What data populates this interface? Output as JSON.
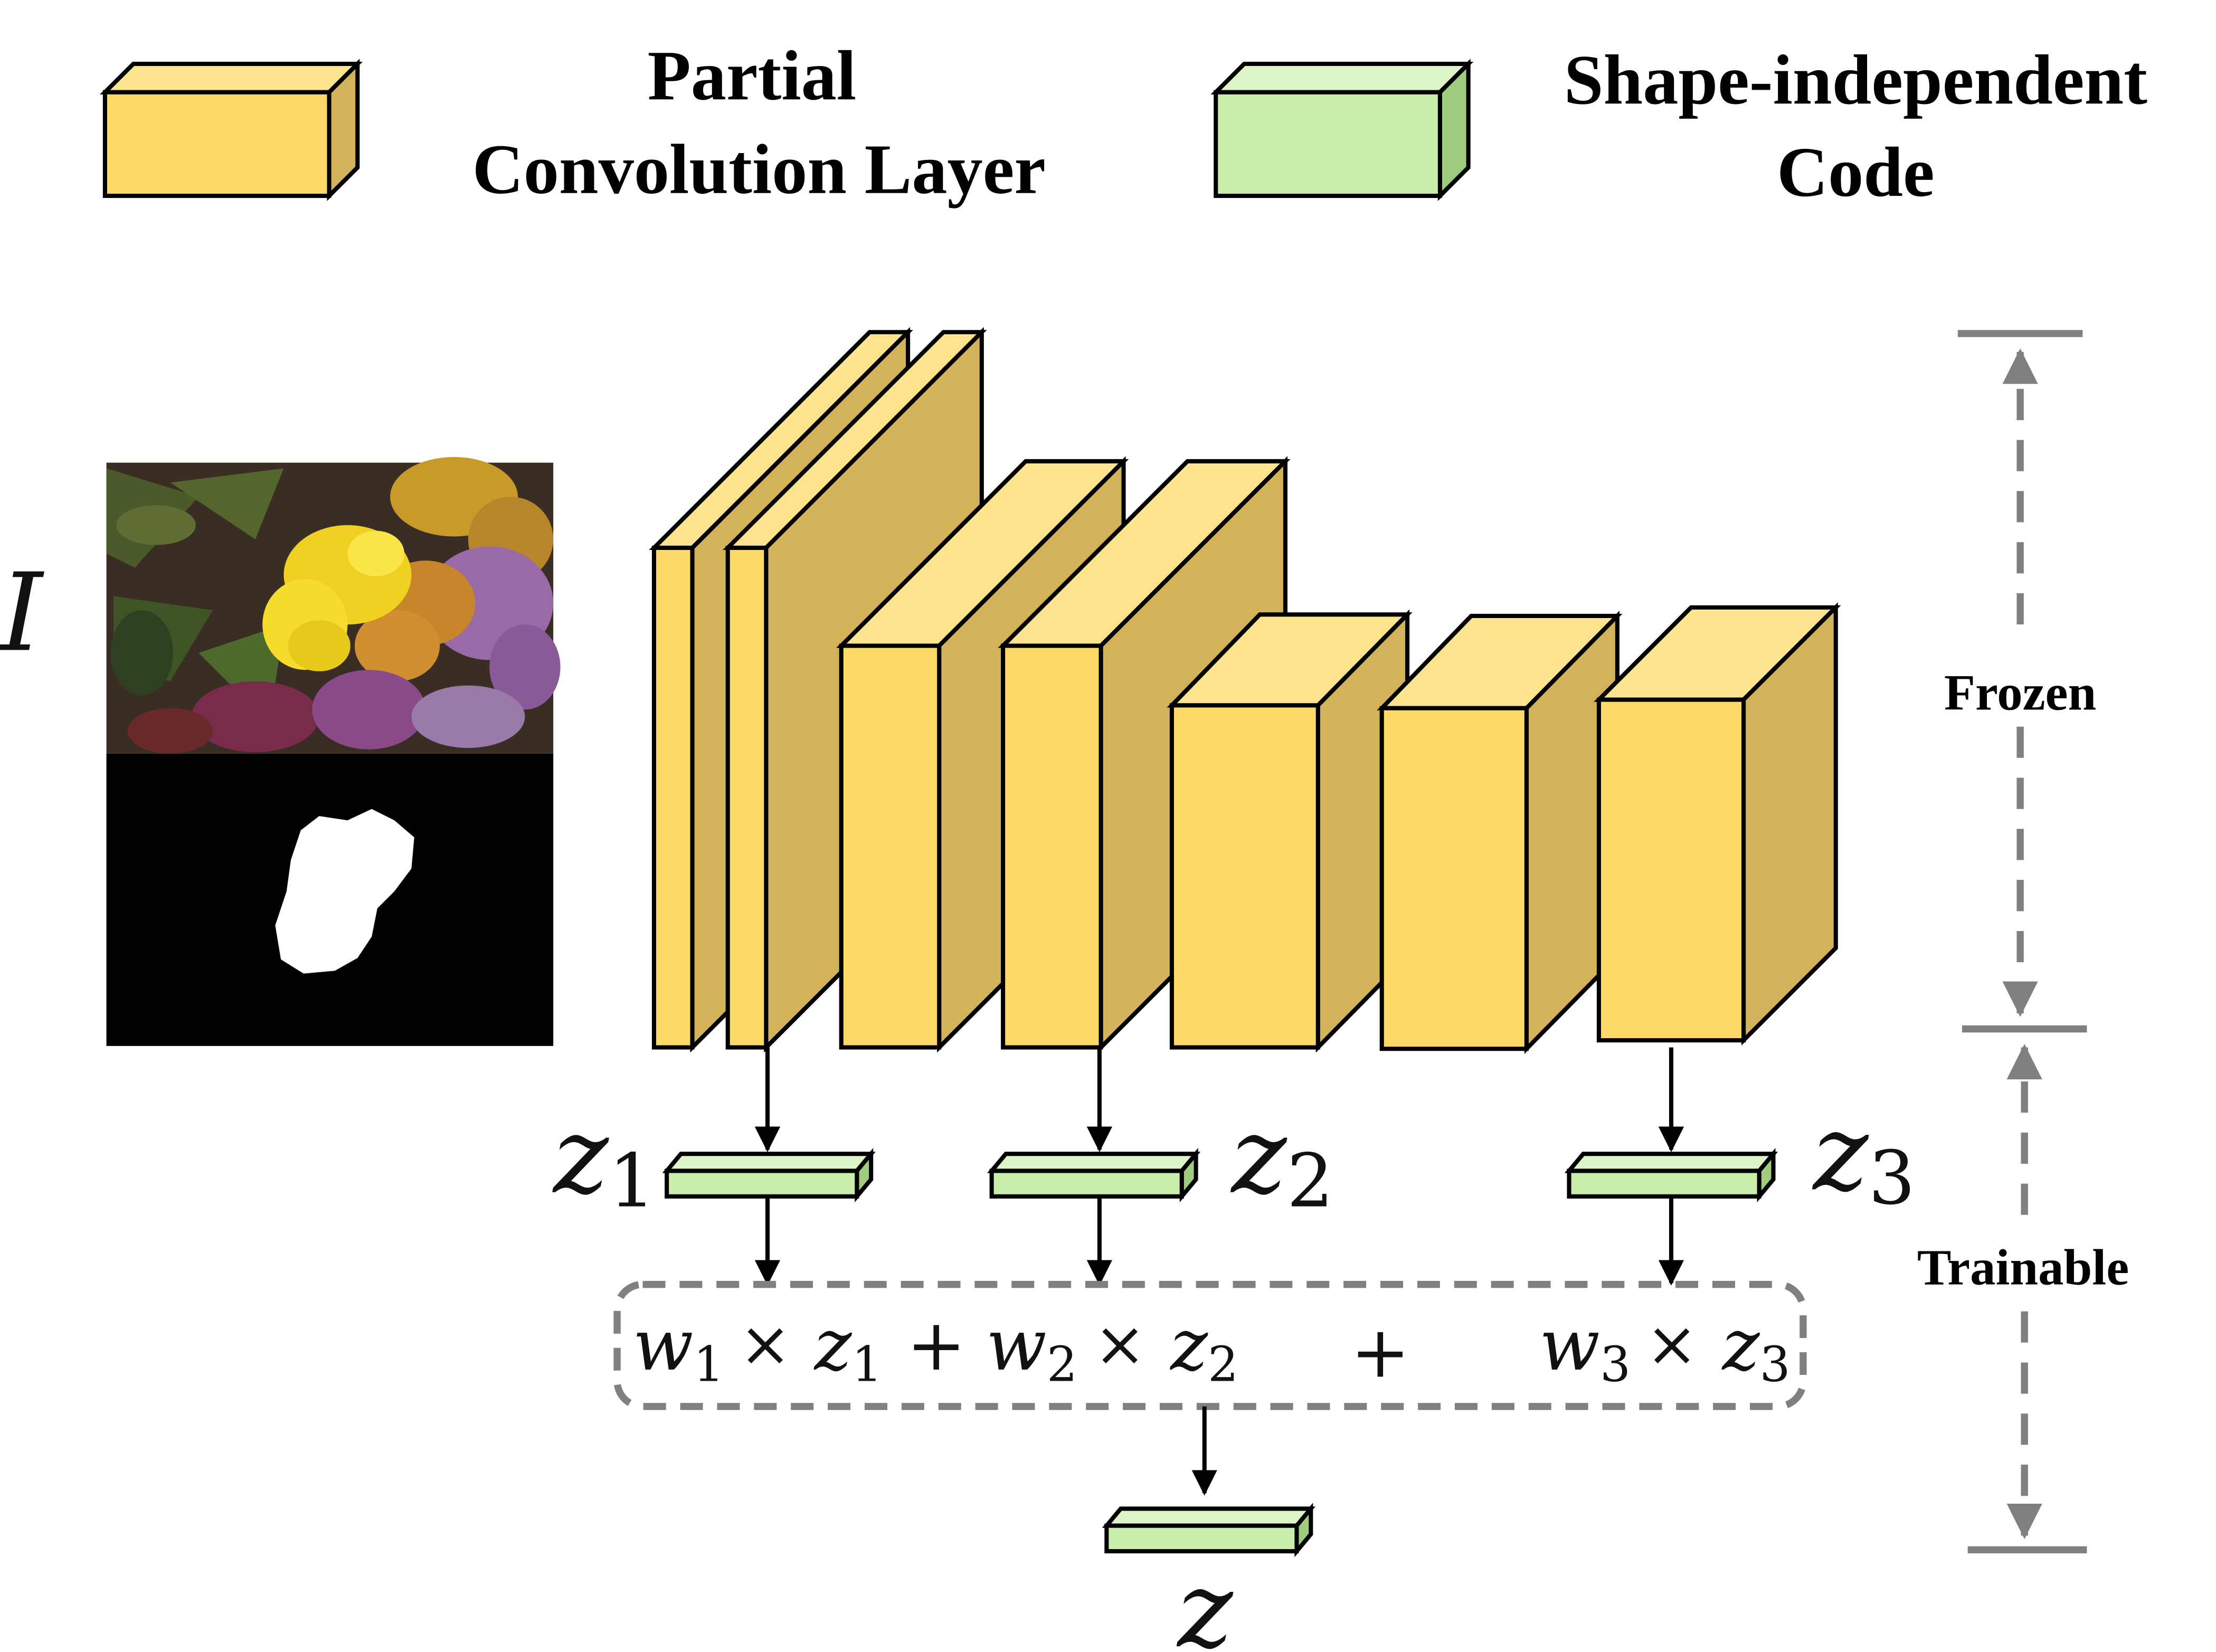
{
  "legend": {
    "conv_label_line1": "Partial",
    "conv_label_line2": "Convolution Layer",
    "code_label_line1": "Shape-independent",
    "code_label_line2": "Code"
  },
  "input": {
    "label": "I"
  },
  "codes": {
    "z1": {
      "base": "z",
      "sub": "1"
    },
    "z2": {
      "base": "z",
      "sub": "2"
    },
    "z3": {
      "base": "z",
      "sub": "3"
    },
    "z": {
      "base": "z"
    }
  },
  "formula": {
    "w1": "w",
    "w1_sub": "1",
    "x1": "×",
    "z1": "z",
    "z1_sub": "1",
    "plus1": "+",
    "w2": "w",
    "w2_sub": "2",
    "x2": "×",
    "z2": "z",
    "z2_sub": "2",
    "plus2": "+",
    "w3": "w",
    "w3_sub": "3",
    "x3": "×",
    "z3": "z",
    "z3_sub": "3"
  },
  "sections": {
    "frozen": "Frozen",
    "trainable": "Trainable"
  },
  "colors": {
    "layer_front": "#FDD96A",
    "layer_top": "#FDE38D",
    "layer_side": "#D2B35A",
    "code_front": "#C9EEAA",
    "code_top": "#DDF5C6",
    "code_side": "#A0CC80",
    "dash": "#808080"
  }
}
